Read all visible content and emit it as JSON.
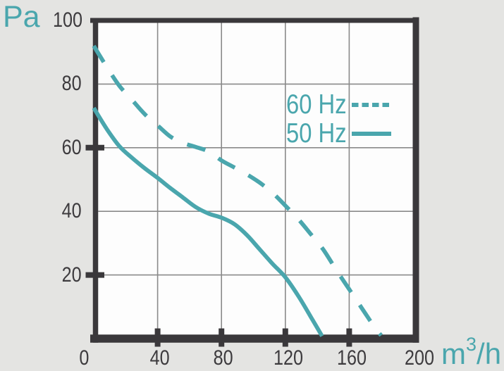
{
  "labels": {
    "y_unit": "Pa",
    "x_unit_base": "m",
    "x_unit_sup": "3",
    "x_unit_rest": "/h"
  },
  "chart_data": {
    "type": "line",
    "title": "",
    "xlabel": "m3/h",
    "ylabel": "Pa",
    "xlim": [
      0,
      200
    ],
    "ylim": [
      0,
      100
    ],
    "x_ticks": [
      0,
      40,
      80,
      120,
      160,
      200
    ],
    "y_ticks": [
      20,
      40,
      60,
      80,
      100
    ],
    "x_tick_marks": [
      40,
      80,
      120,
      160
    ],
    "y_tick_marks": [
      20,
      60
    ],
    "grid": true,
    "legend_position": "inside-upper-right",
    "colors": {
      "curve": "#4aa6ad",
      "axis": "#3a383b",
      "grid": "#8a8a8a",
      "tick_label": "#3d3b3e",
      "plot_background": "#fdfdfd",
      "page_background": "#e4e4e2"
    },
    "series": [
      {
        "name": "60 Hz",
        "style": "dashed",
        "points": [
          [
            0,
            92
          ],
          [
            8,
            85.5
          ],
          [
            16,
            79.5
          ],
          [
            24,
            75
          ],
          [
            32,
            70.5
          ],
          [
            40,
            67
          ],
          [
            48,
            63.5
          ],
          [
            56,
            61.5
          ],
          [
            64,
            60.2
          ],
          [
            72,
            58.8
          ],
          [
            80,
            56
          ],
          [
            88,
            53.8
          ],
          [
            96,
            51.6
          ],
          [
            104,
            49
          ],
          [
            112,
            45.8
          ],
          [
            120,
            41.8
          ],
          [
            128,
            37.6
          ],
          [
            136,
            32.8
          ],
          [
            144,
            27.8
          ],
          [
            152,
            21.5
          ],
          [
            160,
            15.5
          ],
          [
            168,
            9.5
          ],
          [
            176,
            3.5
          ],
          [
            180,
            1
          ]
        ]
      },
      {
        "name": "50 Hz",
        "style": "solid",
        "points": [
          [
            0,
            72.5
          ],
          [
            8,
            66
          ],
          [
            16,
            60.5
          ],
          [
            24,
            56.8
          ],
          [
            32,
            53.5
          ],
          [
            40,
            50.5
          ],
          [
            48,
            47.3
          ],
          [
            56,
            44.3
          ],
          [
            64,
            41.3
          ],
          [
            72,
            39.3
          ],
          [
            80,
            38
          ],
          [
            88,
            36
          ],
          [
            96,
            32.5
          ],
          [
            104,
            28
          ],
          [
            112,
            23.5
          ],
          [
            120,
            19.3
          ],
          [
            128,
            13.5
          ],
          [
            136,
            6.8
          ],
          [
            143,
            0.8
          ]
        ]
      }
    ]
  }
}
